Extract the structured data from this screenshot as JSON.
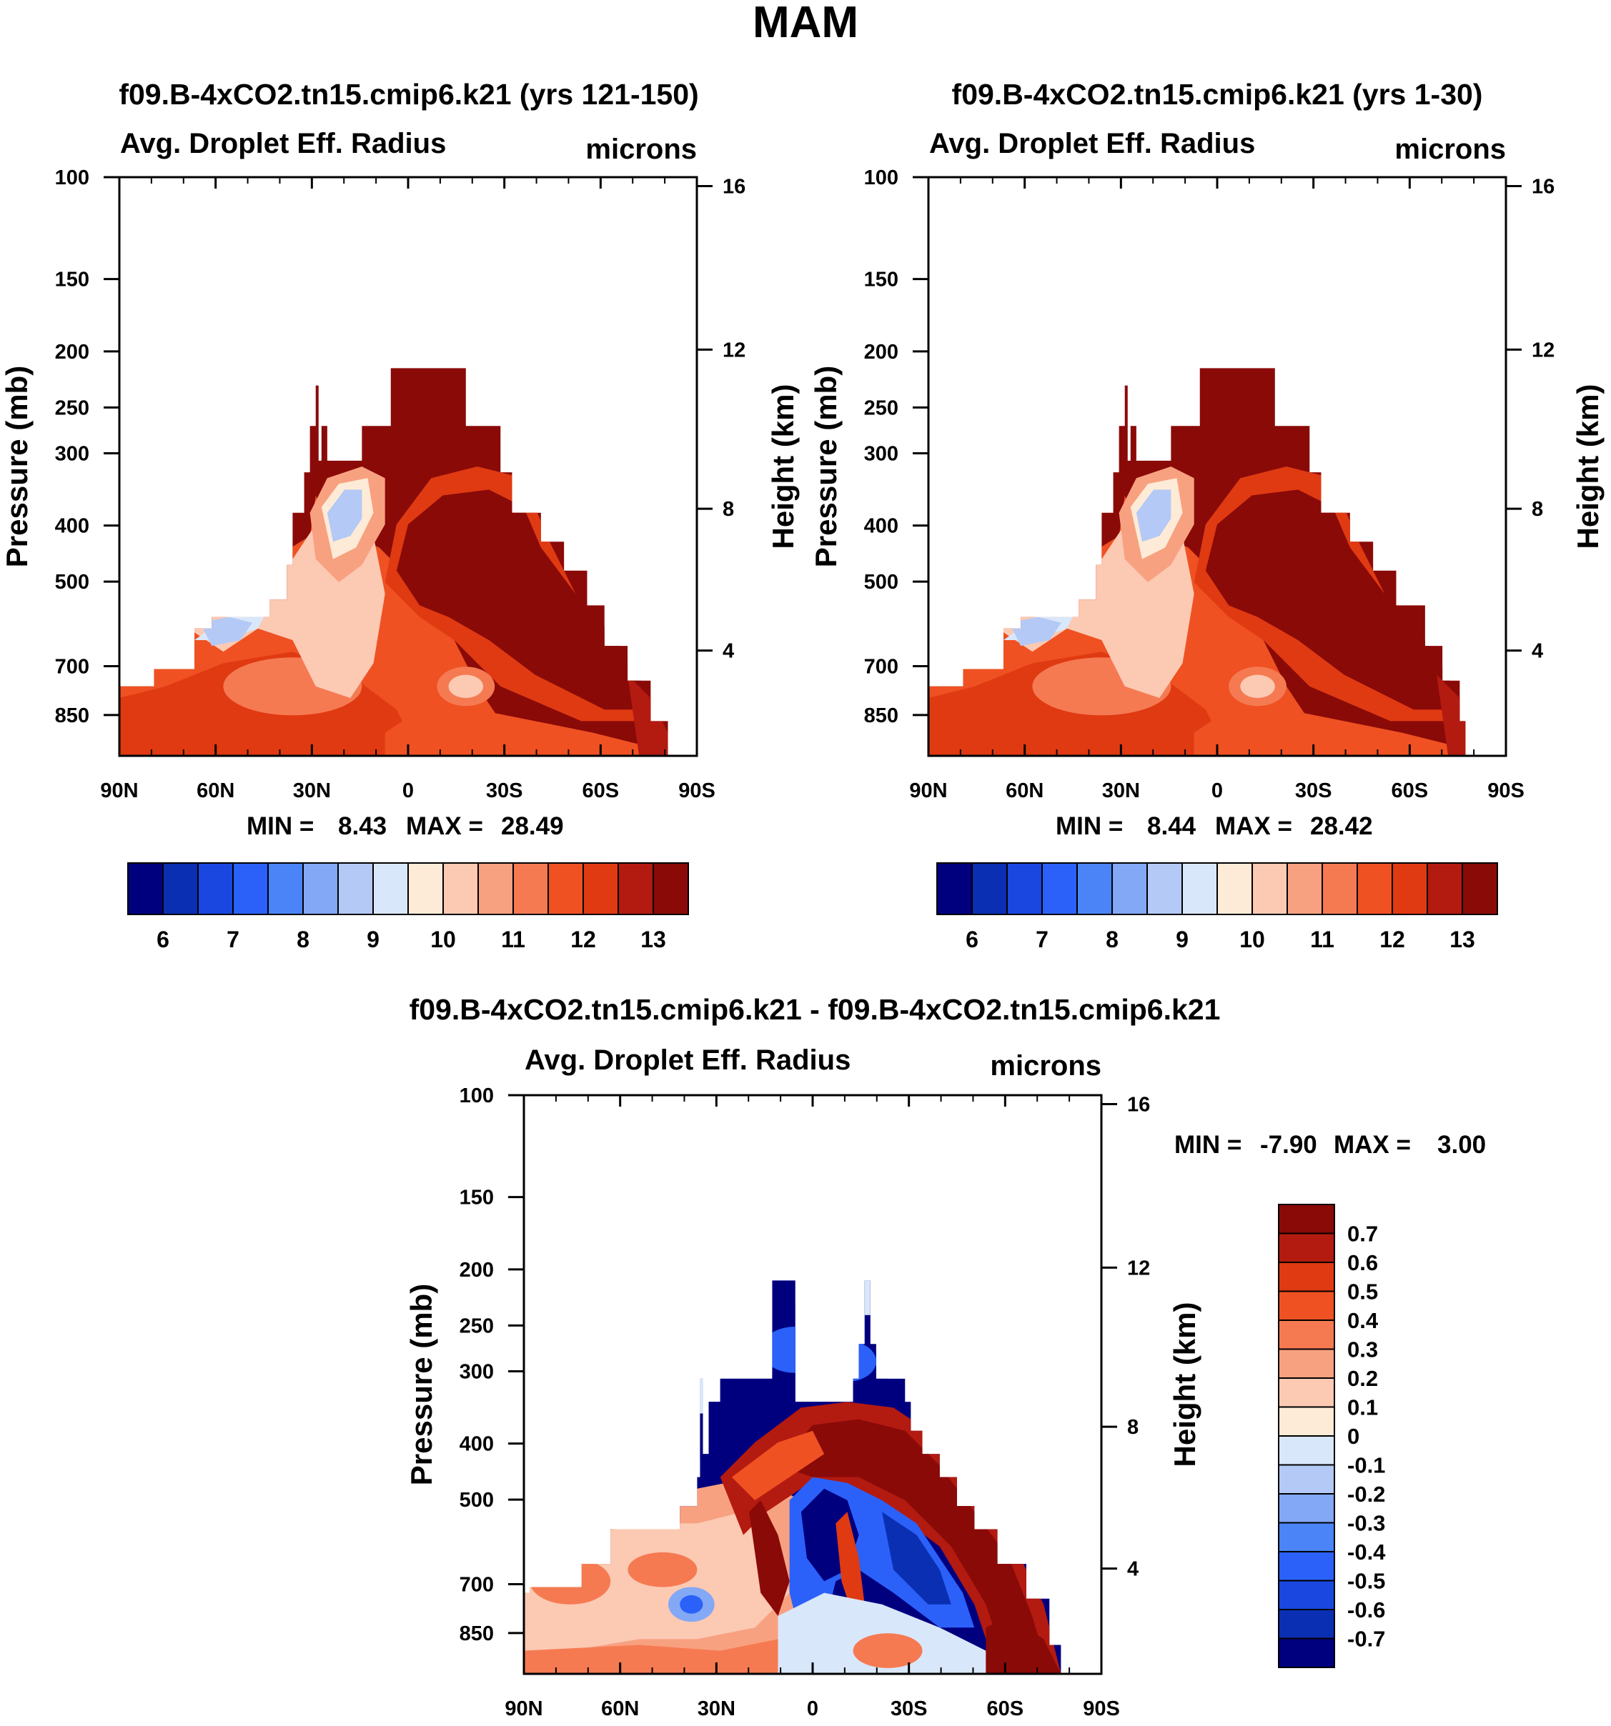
{
  "page_title": "MAM",
  "colors": {
    "abs_palette": [
      "#00007f",
      "#0a2fb2",
      "#1947df",
      "#2b61f9",
      "#4a84f7",
      "#83a8f6",
      "#b4c9f5",
      "#d9e7fa",
      "#fdebd8",
      "#fcc9b3",
      "#f8a180",
      "#f57a52",
      "#ef5122",
      "#e03a12",
      "#b31a10",
      "#8a0a08"
    ],
    "diff_palette": [
      "#00007f",
      "#0a2fb2",
      "#1947df",
      "#2b61f9",
      "#4a84f7",
      "#83a8f6",
      "#b4c9f5",
      "#d9e7fa",
      "#fdebd8",
      "#fcc9b3",
      "#f8a180",
      "#f57a52",
      "#ef5122",
      "#e03a12",
      "#b31a10",
      "#8a0a08"
    ]
  },
  "chart_data": [
    {
      "type": "heatmap",
      "title": "f09.B-4xCO2.tn15.cmip6.k21 (yrs 121-150)",
      "subtitle_left": "Avg. Droplet Eff. Radius",
      "subtitle_right": "microns",
      "xlabel": "",
      "ylabel": "Pressure (mb)",
      "ylabel_right": "Height (km)",
      "x_ticks": [
        "90N",
        "60N",
        "30N",
        "0",
        "30S",
        "60S",
        "90S"
      ],
      "y_ticks": [
        "100",
        "150",
        "200",
        "250",
        "300",
        "400",
        "500",
        "700",
        "850"
      ],
      "y_right_ticks": [
        "16",
        "12",
        "8",
        "4"
      ],
      "stats": {
        "min_label": "MIN =",
        "min": "8.43",
        "max_label": "MAX =",
        "max": "28.49"
      },
      "colorbar_labels": [
        "6",
        "7",
        "8",
        "9",
        "10",
        "11",
        "12",
        "13"
      ],
      "ylim": [
        1000,
        100
      ],
      "xlim": [
        "90N",
        "90S"
      ]
    },
    {
      "type": "heatmap",
      "title": "f09.B-4xCO2.tn15.cmip6.k21 (yrs 1-30)",
      "subtitle_left": "Avg. Droplet Eff. Radius",
      "subtitle_right": "microns",
      "xlabel": "",
      "ylabel": "Pressure (mb)",
      "ylabel_right": "Height (km)",
      "x_ticks": [
        "90N",
        "60N",
        "30N",
        "0",
        "30S",
        "60S",
        "90S"
      ],
      "y_ticks": [
        "100",
        "150",
        "200",
        "250",
        "300",
        "400",
        "500",
        "700",
        "850"
      ],
      "y_right_ticks": [
        "16",
        "12",
        "8",
        "4"
      ],
      "stats": {
        "min_label": "MIN =",
        "min": "8.44",
        "max_label": "MAX =",
        "max": "28.42"
      },
      "colorbar_labels": [
        "6",
        "7",
        "8",
        "9",
        "10",
        "11",
        "12",
        "13"
      ],
      "ylim": [
        1000,
        100
      ],
      "xlim": [
        "90N",
        "90S"
      ]
    },
    {
      "type": "heatmap",
      "title": "f09.B-4xCO2.tn15.cmip6.k21 - f09.B-4xCO2.tn15.cmip6.k21",
      "subtitle_left": "Avg. Droplet Eff. Radius",
      "subtitle_right": "microns",
      "xlabel": "",
      "ylabel": "Pressure (mb)",
      "ylabel_right": "Height (km)",
      "x_ticks": [
        "90N",
        "60N",
        "30N",
        "0",
        "30S",
        "60S",
        "90S"
      ],
      "y_ticks": [
        "100",
        "150",
        "200",
        "250",
        "300",
        "400",
        "500",
        "700",
        "850"
      ],
      "y_right_ticks": [
        "16",
        "12",
        "8",
        "4"
      ],
      "stats": {
        "min_label": "MIN =",
        "min": "-7.90",
        "max_label": "MAX =",
        "max": "3.00"
      },
      "colorbar_labels": [
        "0.7",
        "0.6",
        "0.5",
        "0.4",
        "0.3",
        "0.2",
        "0.1",
        "0",
        "-0.1",
        "-0.2",
        "-0.3",
        "-0.4",
        "-0.5",
        "-0.6",
        "-0.7"
      ],
      "ylim": [
        1000,
        100
      ],
      "xlim": [
        "90N",
        "90S"
      ]
    }
  ]
}
